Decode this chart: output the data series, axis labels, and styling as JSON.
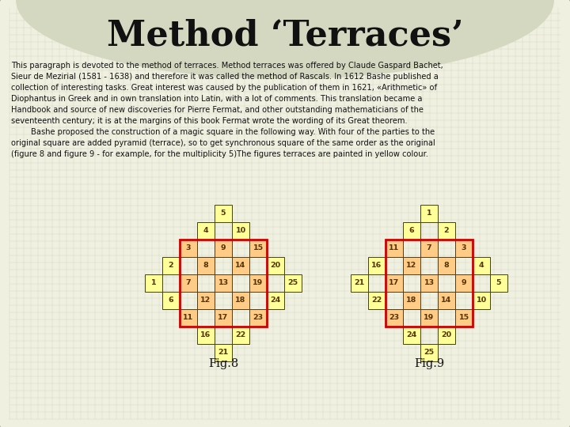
{
  "title": "Method ‘Terraces’",
  "bg_color": "#c8ccb4",
  "panel_color": "#f0f0e0",
  "grid_color": "#c0c8b0",
  "text_color": "#111111",
  "cell_yellow": "#ffff99",
  "cell_orange": "#ffcc88",
  "cell_border_color": "#444400",
  "red_border_color": "#cc0000",
  "fig8_label": "Fig.8",
  "fig9_label": "Fig.9",
  "text_lines": [
    "This paragraph is devoted to the method of terraces. Method terraces was offered by Claude Gaspard Bachet,",
    "Sieur de Mezirial (1581 - 1638) and therefore it was called the method of Rascals. In 1612 Bashe published a",
    "collection of interesting tasks. Great interest was caused by the publication of them in 1621, «Arithmetic» of",
    "Diophantus in Greek and in own translation into Latin, with a lot of comments. This translation became a",
    "Handbook and source of new discoveries for Pierre Fermat, and other outstanding mathematicians of the",
    "seventeenth century; it is at the margins of this book Fermat wrote the wording of its Great theorem.",
    "        Bashe proposed the construction of a magic square in the following way. With four of the parties to the",
    "original square are added pyramid (terrace), so to get synchronous square of the same order as the original",
    "(figure 8 and figure 9 - for example, for the multiplicity 5)The figures terraces are painted in yellow colour."
  ],
  "fig8_cells": [
    {
      "r": 0,
      "c": 2,
      "val": "5",
      "clr": "Y"
    },
    {
      "r": 1,
      "c": 1,
      "val": "4",
      "clr": "Y"
    },
    {
      "r": 1,
      "c": 3,
      "val": "10",
      "clr": "Y"
    },
    {
      "r": 2,
      "c": 0,
      "val": "3",
      "clr": "O"
    },
    {
      "r": 2,
      "c": 2,
      "val": "9",
      "clr": "O"
    },
    {
      "r": 2,
      "c": 4,
      "val": "15",
      "clr": "O"
    },
    {
      "r": 3,
      "c": -1,
      "val": "2",
      "clr": "Y"
    },
    {
      "r": 3,
      "c": 1,
      "val": "8",
      "clr": "O"
    },
    {
      "r": 3,
      "c": 3,
      "val": "14",
      "clr": "O"
    },
    {
      "r": 3,
      "c": 5,
      "val": "20",
      "clr": "Y"
    },
    {
      "r": 4,
      "c": -2,
      "val": "1",
      "clr": "Y"
    },
    {
      "r": 4,
      "c": 0,
      "val": "7",
      "clr": "O"
    },
    {
      "r": 4,
      "c": 2,
      "val": "13",
      "clr": "O"
    },
    {
      "r": 4,
      "c": 4,
      "val": "19",
      "clr": "O"
    },
    {
      "r": 4,
      "c": 6,
      "val": "25",
      "clr": "Y"
    },
    {
      "r": 5,
      "c": -1,
      "val": "6",
      "clr": "Y"
    },
    {
      "r": 5,
      "c": 1,
      "val": "12",
      "clr": "O"
    },
    {
      "r": 5,
      "c": 3,
      "val": "18",
      "clr": "O"
    },
    {
      "r": 5,
      "c": 5,
      "val": "24",
      "clr": "Y"
    },
    {
      "r": 6,
      "c": 0,
      "val": "11",
      "clr": "O"
    },
    {
      "r": 6,
      "c": 2,
      "val": "17",
      "clr": "O"
    },
    {
      "r": 6,
      "c": 4,
      "val": "23",
      "clr": "O"
    },
    {
      "r": 7,
      "c": 1,
      "val": "16",
      "clr": "Y"
    },
    {
      "r": 7,
      "c": 3,
      "val": "22",
      "clr": "Y"
    },
    {
      "r": 8,
      "c": 2,
      "val": "21",
      "clr": "Y"
    }
  ],
  "fig9_cells": [
    {
      "r": 0,
      "c": 2,
      "val": "1",
      "clr": "Y"
    },
    {
      "r": 1,
      "c": 1,
      "val": "6",
      "clr": "Y"
    },
    {
      "r": 1,
      "c": 3,
      "val": "2",
      "clr": "Y"
    },
    {
      "r": 2,
      "c": 0,
      "val": "11",
      "clr": "O"
    },
    {
      "r": 2,
      "c": 2,
      "val": "7",
      "clr": "O"
    },
    {
      "r": 2,
      "c": 4,
      "val": "3",
      "clr": "O"
    },
    {
      "r": 3,
      "c": -1,
      "val": "16",
      "clr": "Y"
    },
    {
      "r": 3,
      "c": 1,
      "val": "12",
      "clr": "O"
    },
    {
      "r": 3,
      "c": 3,
      "val": "8",
      "clr": "O"
    },
    {
      "r": 3,
      "c": 5,
      "val": "4",
      "clr": "Y"
    },
    {
      "r": 4,
      "c": -2,
      "val": "21",
      "clr": "Y"
    },
    {
      "r": 4,
      "c": 0,
      "val": "17",
      "clr": "O"
    },
    {
      "r": 4,
      "c": 2,
      "val": "13",
      "clr": "O"
    },
    {
      "r": 4,
      "c": 4,
      "val": "9",
      "clr": "O"
    },
    {
      "r": 4,
      "c": 6,
      "val": "5",
      "clr": "Y"
    },
    {
      "r": 5,
      "c": -1,
      "val": "22",
      "clr": "Y"
    },
    {
      "r": 5,
      "c": 1,
      "val": "18",
      "clr": "O"
    },
    {
      "r": 5,
      "c": 3,
      "val": "14",
      "clr": "O"
    },
    {
      "r": 5,
      "c": 5,
      "val": "10",
      "clr": "Y"
    },
    {
      "r": 6,
      "c": 0,
      "val": "23",
      "clr": "O"
    },
    {
      "r": 6,
      "c": 2,
      "val": "19",
      "clr": "O"
    },
    {
      "r": 6,
      "c": 4,
      "val": "15",
      "clr": "O"
    },
    {
      "r": 7,
      "c": 1,
      "val": "24",
      "clr": "Y"
    },
    {
      "r": 7,
      "c": 3,
      "val": "20",
      "clr": "Y"
    },
    {
      "r": 8,
      "c": 2,
      "val": "25",
      "clr": "Y"
    }
  ]
}
